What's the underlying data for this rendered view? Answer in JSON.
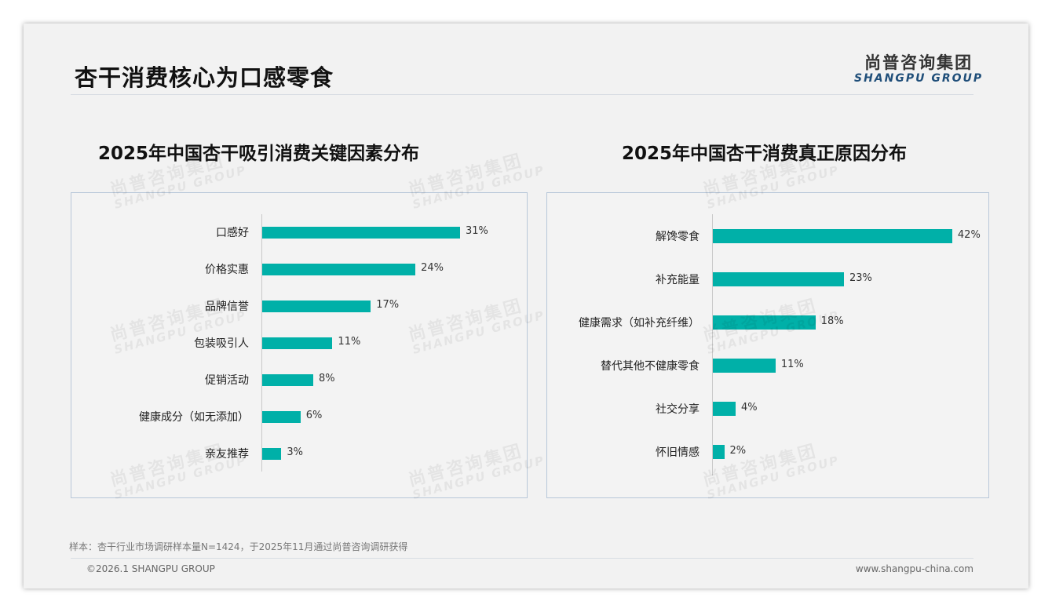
{
  "header": {
    "title": "杏干消费核心为口感零食",
    "logo_cn": "尚普咨询集团",
    "logo_en": "SHANGPU GROUP"
  },
  "watermark": {
    "cn": "尚普咨询集团",
    "en": "SHANGPU GROUP"
  },
  "colors": {
    "bar": "#00b0a8",
    "border": "#b8c7d9"
  },
  "chart_data": [
    {
      "type": "bar",
      "orientation": "horizontal",
      "title": "2025年中国杏干吸引消费关键因素分布",
      "categories": [
        "口感好",
        "价格实惠",
        "品牌信誉",
        "包装吸引人",
        "促销活动",
        "健康成分（如无添加）",
        "亲友推荐"
      ],
      "values": [
        31,
        24,
        17,
        11,
        8,
        6,
        3
      ],
      "labels": [
        "31%",
        "24%",
        "17%",
        "11%",
        "8%",
        "6%",
        "3%"
      ],
      "unit": "%"
    },
    {
      "type": "bar",
      "orientation": "horizontal",
      "title": "2025年中国杏干消费真正原因分布",
      "categories": [
        "解馋零食",
        "补充能量",
        "健康需求（如补充纤维）",
        "替代其他不健康零食",
        "社交分享",
        "怀旧情感"
      ],
      "values": [
        42,
        23,
        18,
        11,
        4,
        2
      ],
      "labels": [
        "42%",
        "23%",
        "18%",
        "11%",
        "4%",
        "2%"
      ],
      "unit": "%"
    }
  ],
  "footer": {
    "note": "样本：杏干行业市场调研样本量N=1424，于2025年11月通过尚普咨询调研获得",
    "copyright": "©2026.1 SHANGPU GROUP",
    "website": "www.shangpu-china.com"
  }
}
